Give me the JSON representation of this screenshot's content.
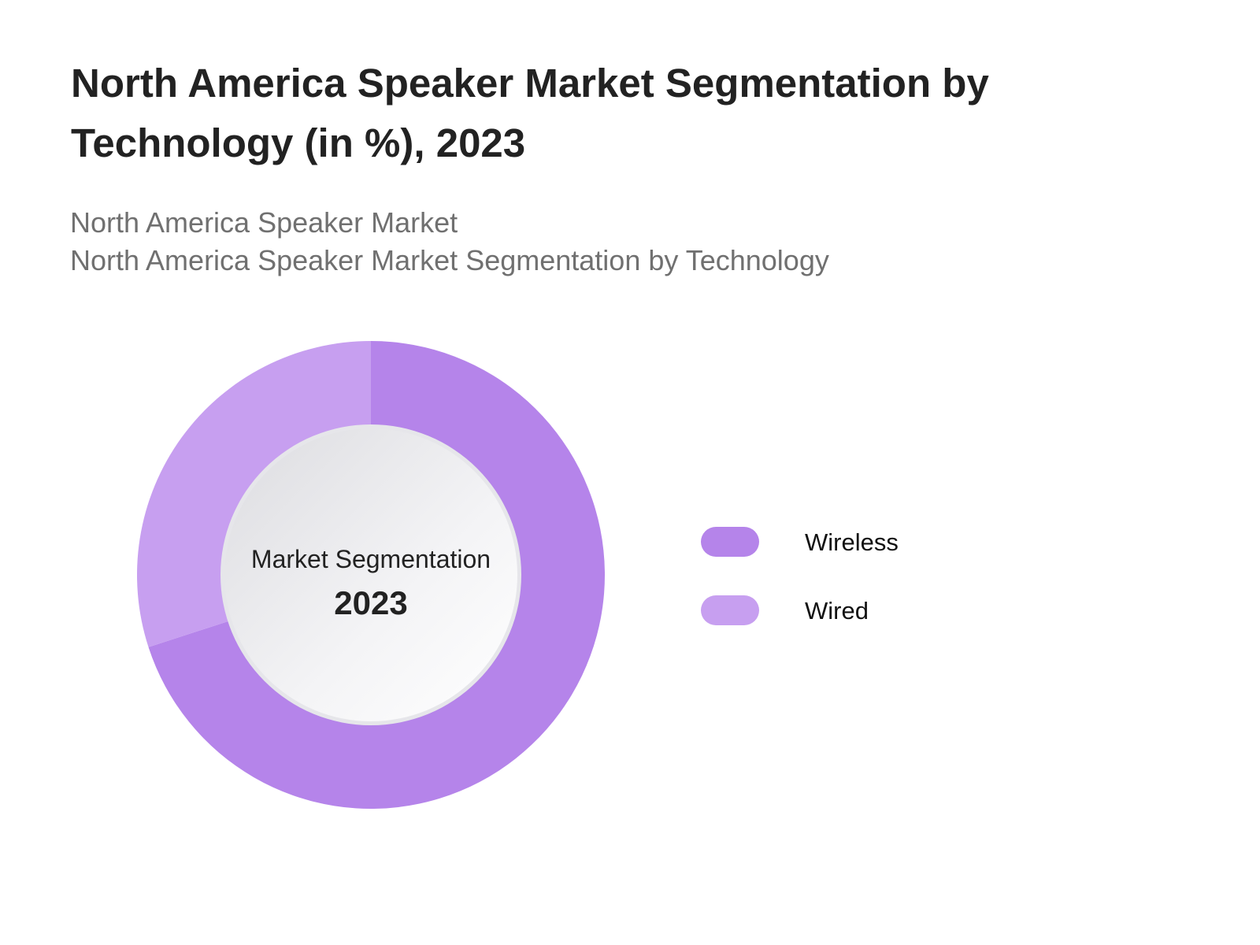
{
  "title": "North America Speaker Market Segmentation by Technology (in %), 2023",
  "subtitle_1": "North America Speaker Market",
  "subtitle_2": "North America Speaker Market Segmentation by Technology",
  "chart_data": {
    "type": "pie",
    "variant": "donut",
    "title": "North America Speaker Market Segmentation by Technology (in %), 2023",
    "center_label": "Market Segmentation",
    "center_value": "2023",
    "categories": [
      "Wireless",
      "Wired"
    ],
    "values": [
      70,
      30
    ],
    "colors": [
      "#b584ea",
      "#c79ff0"
    ],
    "legend_placement": "right"
  }
}
